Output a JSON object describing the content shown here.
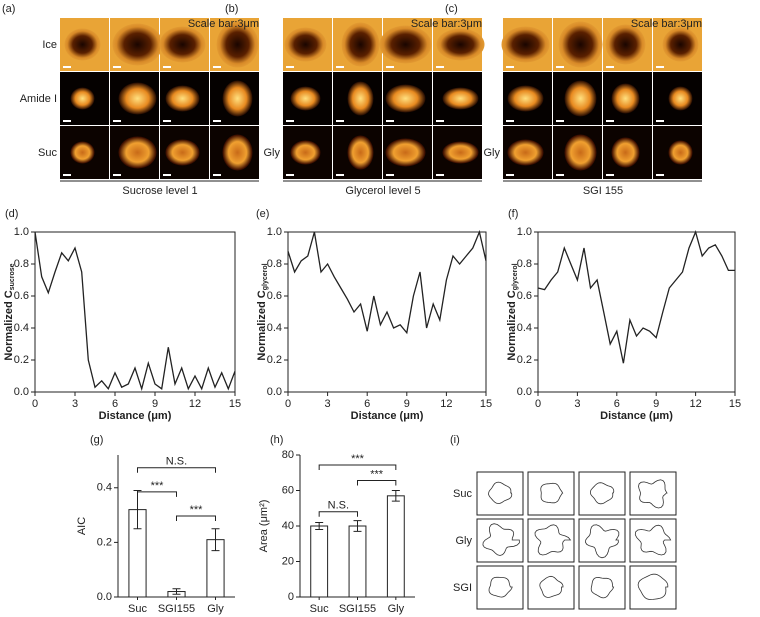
{
  "image_panels": [
    {
      "label": "(a)",
      "scale": "Scale bar:3μm",
      "row_labels": [
        "Ice",
        "Amide I",
        "Suc"
      ],
      "caption": "Sucrose level 1"
    },
    {
      "label": "(b)",
      "scale": "Scale bar:3μm",
      "row_labels": [
        "Gly"
      ],
      "caption": "Glycerol level 5"
    },
    {
      "label": "(c)",
      "scale": "Scale bar:3μm",
      "row_labels": [
        "Gly"
      ],
      "caption": "SGI 155"
    }
  ],
  "chart_data": [
    {
      "type": "line",
      "panel_label": "(d)",
      "x_label": "Distance (μm)",
      "y_label": "Normalized C",
      "y_label_sub": "sucrose",
      "color": "#222222",
      "x": [
        0,
        0.5,
        1,
        1.5,
        2,
        2.5,
        3,
        3.5,
        4,
        4.5,
        5,
        5.5,
        6,
        6.5,
        7,
        7.5,
        8,
        8.5,
        9,
        9.5,
        10,
        10.5,
        11,
        11.5,
        12,
        12.5,
        13,
        13.5,
        14,
        14.5,
        15
      ],
      "values": [
        1.0,
        0.72,
        0.62,
        0.75,
        0.87,
        0.82,
        0.9,
        0.75,
        0.2,
        0.03,
        0.07,
        0.02,
        0.12,
        0.03,
        0.05,
        0.15,
        0.02,
        0.18,
        0.05,
        0.02,
        0.28,
        0.05,
        0.15,
        0.02,
        0.1,
        0.02,
        0.15,
        0.03,
        0.12,
        0.02,
        0.13
      ],
      "xlim": [
        0,
        15
      ],
      "xticks": [
        0,
        3,
        6,
        9,
        12,
        15
      ],
      "ylim": [
        0,
        1
      ],
      "yticks": [
        {
          "value": 0,
          "label": "0.0"
        },
        0.2,
        0.4,
        0.6,
        0.8,
        {
          "value": 1,
          "label": "1.0"
        }
      ]
    },
    {
      "type": "line",
      "panel_label": "(e)",
      "x_label": "Distance (μm)",
      "y_label": "Normalized C",
      "y_label_sub": "glycerol",
      "color": "#222222",
      "x": [
        0,
        0.5,
        1,
        1.5,
        2,
        2.5,
        3,
        3.5,
        4,
        4.5,
        5,
        5.5,
        6,
        6.5,
        7,
        7.5,
        8,
        8.5,
        9,
        9.5,
        10,
        10.5,
        11,
        11.5,
        12,
        12.5,
        13,
        13.5,
        14,
        14.5,
        15
      ],
      "values": [
        0.88,
        0.75,
        0.82,
        0.85,
        1.0,
        0.75,
        0.8,
        0.72,
        0.65,
        0.58,
        0.5,
        0.55,
        0.38,
        0.6,
        0.42,
        0.5,
        0.4,
        0.42,
        0.37,
        0.6,
        0.75,
        0.4,
        0.55,
        0.45,
        0.7,
        0.85,
        0.8,
        0.85,
        0.9,
        1.0,
        0.82
      ],
      "xlim": [
        0,
        15
      ],
      "xticks": [
        0,
        3,
        6,
        9,
        12,
        15
      ],
      "ylim": [
        0,
        1
      ],
      "yticks": [
        {
          "value": 0,
          "label": "0.0"
        },
        0.2,
        0.4,
        0.6,
        0.8,
        {
          "value": 1,
          "label": "1.0"
        }
      ]
    },
    {
      "type": "line",
      "panel_label": "(f)",
      "x_label": "Distance (μm)",
      "y_label": "Normalized C",
      "y_label_sub": "glycerol",
      "color": "#222222",
      "x": [
        0,
        0.5,
        1,
        1.5,
        2,
        2.5,
        3,
        3.5,
        4,
        4.5,
        5,
        5.5,
        6,
        6.5,
        7,
        7.5,
        8,
        8.5,
        9,
        9.5,
        10,
        10.5,
        11,
        11.5,
        12,
        12.5,
        13,
        13.5,
        14,
        14.5,
        15
      ],
      "values": [
        0.65,
        0.64,
        0.7,
        0.75,
        0.9,
        0.8,
        0.7,
        0.9,
        0.65,
        0.7,
        0.5,
        0.3,
        0.38,
        0.18,
        0.45,
        0.35,
        0.4,
        0.38,
        0.34,
        0.5,
        0.65,
        0.7,
        0.75,
        0.9,
        1.0,
        0.85,
        0.9,
        0.92,
        0.85,
        0.76,
        0.76
      ],
      "xlim": [
        0,
        15
      ],
      "xticks": [
        0,
        3,
        6,
        9,
        12,
        15
      ],
      "ylim": [
        0,
        1
      ],
      "yticks": [
        {
          "value": 0,
          "label": "0.0"
        },
        0.2,
        0.4,
        0.6,
        0.8,
        {
          "value": 1,
          "label": "1.0"
        }
      ]
    },
    {
      "type": "bar",
      "panel_label": "(g)",
      "y_label": "AIC",
      "color": "#ffffff",
      "categories": [
        "Suc",
        "SGI155",
        "Gly"
      ],
      "values": [
        0.32,
        0.02,
        0.21
      ],
      "errors": [
        0.07,
        0.01,
        0.04
      ],
      "ylim": [
        0,
        0.52
      ],
      "yticks": [
        {
          "value": 0,
          "label": "0.0"
        },
        0.2,
        0.4
      ],
      "annotations": [
        "N.S.",
        "***",
        "***"
      ]
    },
    {
      "type": "bar",
      "panel_label": "(h)",
      "y_label": "Area (μm²)",
      "color": "#ffffff",
      "categories": [
        "Suc",
        "SGI155",
        "Gly"
      ],
      "values": [
        40,
        40,
        57
      ],
      "errors": [
        2,
        3,
        3
      ],
      "ylim": [
        0,
        80
      ],
      "yticks": [
        0,
        20,
        40,
        60,
        80
      ],
      "annotations": [
        "***",
        "N.S.",
        "***"
      ]
    }
  ],
  "contour_panel": {
    "label": "(i)",
    "row_labels": [
      "Suc",
      "Gly",
      "SGI"
    ]
  }
}
